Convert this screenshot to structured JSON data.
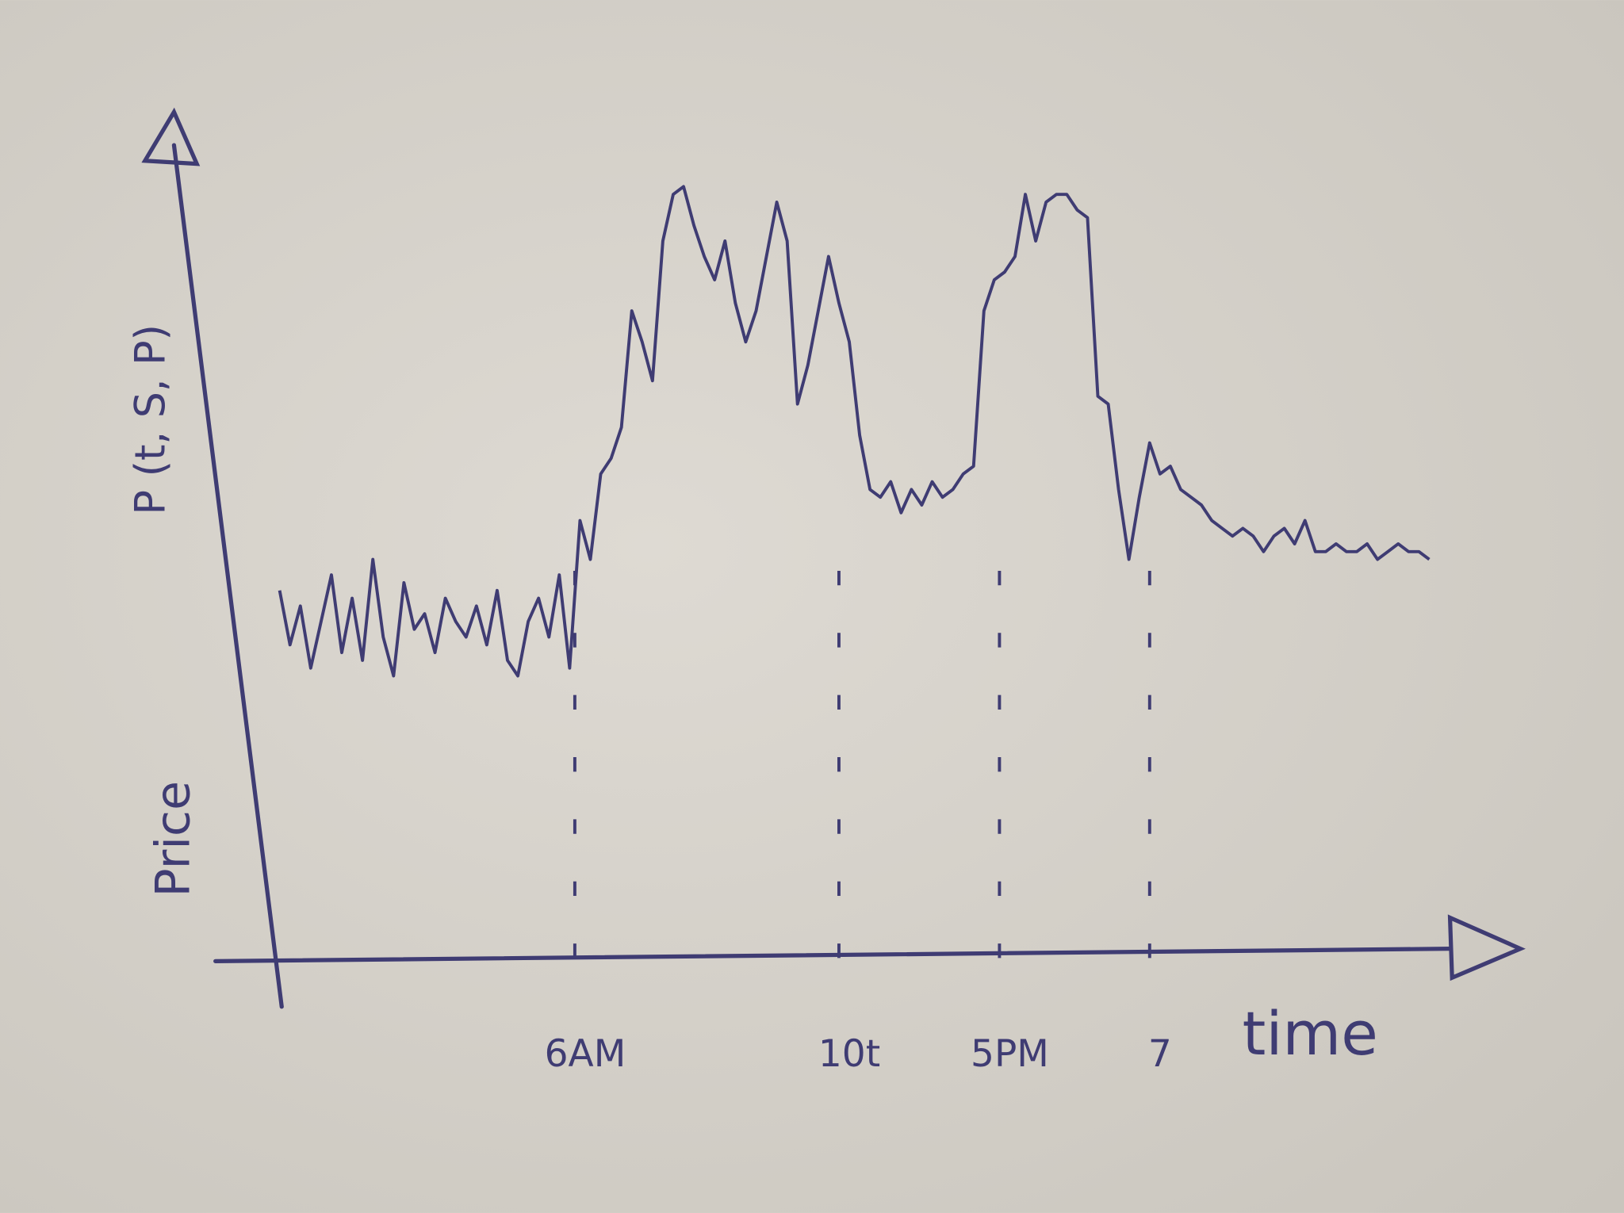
{
  "chart_data": {
    "type": "line",
    "ylabel": "Price",
    "ylabel_formula": "P (t, S, P)",
    "xlabel": "time",
    "x": [
      0,
      1,
      2,
      3,
      4,
      5,
      6,
      7,
      8,
      9,
      10,
      11,
      12,
      13,
      14,
      15,
      16,
      17,
      18,
      19,
      20,
      21,
      22,
      23,
      24,
      25,
      26,
      27,
      28,
      29,
      30,
      31,
      32,
      33,
      34,
      35,
      36,
      37,
      38,
      39,
      40,
      41,
      42,
      43,
      44,
      45,
      46,
      47,
      48,
      49,
      50,
      51,
      52,
      53,
      54,
      55,
      56,
      57,
      58,
      59,
      60,
      61,
      62,
      63,
      64,
      65,
      66,
      67,
      68,
      69,
      70,
      71,
      72,
      73,
      74,
      75,
      76,
      77,
      78,
      79,
      80,
      81,
      82,
      83,
      84,
      85,
      86,
      87,
      88,
      89,
      90,
      91,
      92,
      93,
      94,
      95,
      96,
      97,
      98,
      99,
      100,
      101,
      102,
      103,
      104,
      105,
      106,
      107,
      108,
      109,
      110,
      111
    ],
    "series": [
      {
        "color": "#3f3c73",
        "values": [
          48,
          41,
          46,
          38,
          44,
          50,
          40,
          47,
          39,
          52,
          42,
          37,
          49,
          43,
          45,
          40,
          47,
          44,
          42,
          46,
          41,
          48,
          39,
          37,
          44,
          47,
          42,
          50,
          38,
          57,
          52,
          63,
          65,
          69,
          84,
          80,
          75,
          93,
          99,
          100,
          95,
          91,
          88,
          93,
          85,
          80,
          84,
          91,
          98,
          93,
          72,
          77,
          84,
          91,
          85,
          80,
          68,
          61,
          60,
          62,
          58,
          61,
          59,
          62,
          60,
          61,
          63,
          64,
          84,
          88,
          89,
          91,
          99,
          93,
          98,
          99,
          99,
          97,
          96,
          73,
          72,
          61,
          52,
          60,
          67,
          63,
          64,
          61,
          60,
          59,
          57,
          56,
          55,
          56,
          55,
          53,
          55,
          56,
          54,
          57,
          53,
          53,
          54,
          53,
          53,
          54,
          52,
          53,
          54,
          53,
          53,
          52
        ]
      }
    ],
    "xlim": [
      0,
      120
    ],
    "ylim": [
      0,
      100
    ],
    "xticks": [
      {
        "value": 28.5,
        "label": "6AM"
      },
      {
        "value": 54,
        "label": "10t"
      },
      {
        "value": 69.5,
        "label": "5PM"
      },
      {
        "value": 84,
        "label": "7"
      }
    ],
    "grid": "dashed"
  }
}
